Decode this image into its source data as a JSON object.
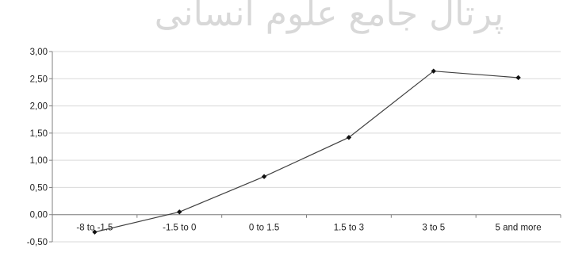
{
  "watermark": "پرتال جامع علوم انسانی",
  "chart_data": {
    "type": "line",
    "title": "",
    "xlabel": "",
    "ylabel": "",
    "categories": [
      "-8 to -1.5",
      "-1.5 to 0",
      "0 to 1.5",
      "1.5 to 3",
      "3 to 5",
      "5 and more"
    ],
    "series": [
      {
        "values": [
          -0.32,
          0.05,
          0.7,
          1.42,
          2.64,
          2.52
        ]
      }
    ],
    "ylim": [
      -0.5,
      3.0
    ],
    "yticks": [
      "-0,50",
      "0,00",
      "0,50",
      "1,00",
      "1,50",
      "2,00",
      "2,50",
      "3,00"
    ],
    "grid": true,
    "legend": "none",
    "line_color": "#404040",
    "marker": "diamond"
  }
}
